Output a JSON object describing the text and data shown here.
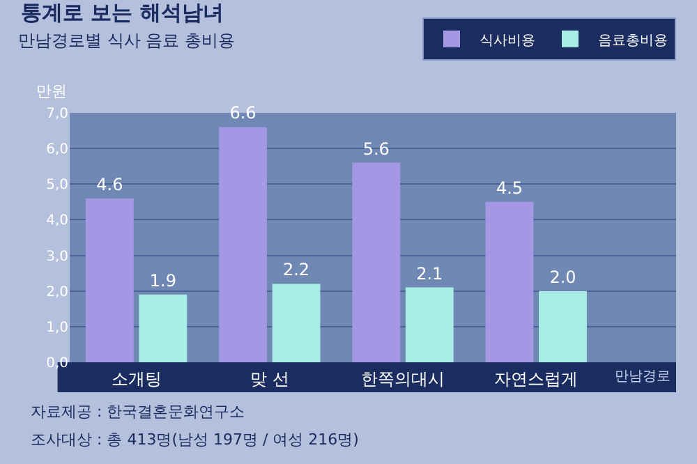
{
  "chart_data": {
    "type": "bar",
    "title": "통계로 보는 해석남녀",
    "subtitle": "만남경로별 식사 음료 총비용",
    "ylabel": "만원",
    "xlabel": "만남경로",
    "categories": [
      "소개팅",
      "맞 선",
      "한쪽의대시",
      "자연스럽게"
    ],
    "series": [
      {
        "name": "식사비용",
        "color": "#a498e4",
        "values": [
          4.6,
          6.6,
          5.6,
          4.5
        ],
        "value_labels": [
          "4.6",
          "6.6",
          "5.6",
          "4.5"
        ]
      },
      {
        "name": "음료총비용",
        "color": "#a8ece6",
        "values": [
          1.9,
          2.2,
          2.1,
          2.0
        ],
        "value_labels": [
          "1.9",
          "2.2",
          "2.1",
          "2.0"
        ]
      }
    ],
    "ylim": [
      0,
      7
    ],
    "yticks": [
      {
        "value": 0,
        "label": "0,0"
      },
      {
        "value": 1,
        "label": "1,0"
      },
      {
        "value": 2,
        "label": "2,0"
      },
      {
        "value": 3,
        "label": "3,0"
      },
      {
        "value": 4,
        "label": "4,0"
      },
      {
        "value": 5,
        "label": "5,0"
      },
      {
        "value": 6,
        "label": "6,0"
      },
      {
        "value": 7,
        "label": "7,0"
      }
    ],
    "grid": "y",
    "legend": "top right",
    "annotations": [
      "자료제공 : 한국결혼문화연구소",
      "조사대상 : 총 413명(남성 197명 / 여성 216명)"
    ]
  }
}
